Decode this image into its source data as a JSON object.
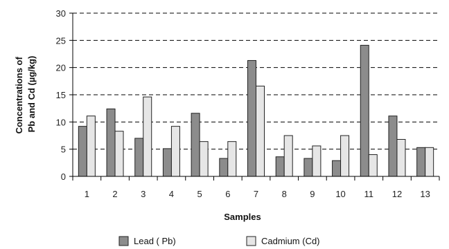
{
  "chart_data": {
    "type": "bar",
    "title": "",
    "xlabel": "Samples",
    "ylabel": [
      "Concentrations of",
      "Pb and Cd (µg/kg)"
    ],
    "categories": [
      "1",
      "2",
      "3",
      "4",
      "5",
      "6",
      "7",
      "8",
      "9",
      "10",
      "11",
      "12",
      "13"
    ],
    "series": [
      {
        "name": "Lead ( Pb)",
        "values": [
          9.2,
          12.4,
          7.0,
          5.1,
          11.6,
          3.3,
          21.3,
          3.6,
          3.3,
          2.9,
          24.1,
          11.1,
          5.3
        ],
        "color": "#8c8c8c"
      },
      {
        "name": "Cadmium (Cd)",
        "values": [
          11.1,
          8.3,
          14.6,
          9.2,
          6.4,
          6.4,
          16.6,
          7.5,
          5.6,
          7.5,
          4.0,
          6.8,
          5.3
        ],
        "color": "#e6e6e6"
      }
    ],
    "ylim": [
      0,
      30
    ],
    "yticks": [
      0,
      5,
      10,
      15,
      20,
      25,
      30
    ],
    "grid": "dashed-horizontal",
    "legend_position": "bottom"
  }
}
